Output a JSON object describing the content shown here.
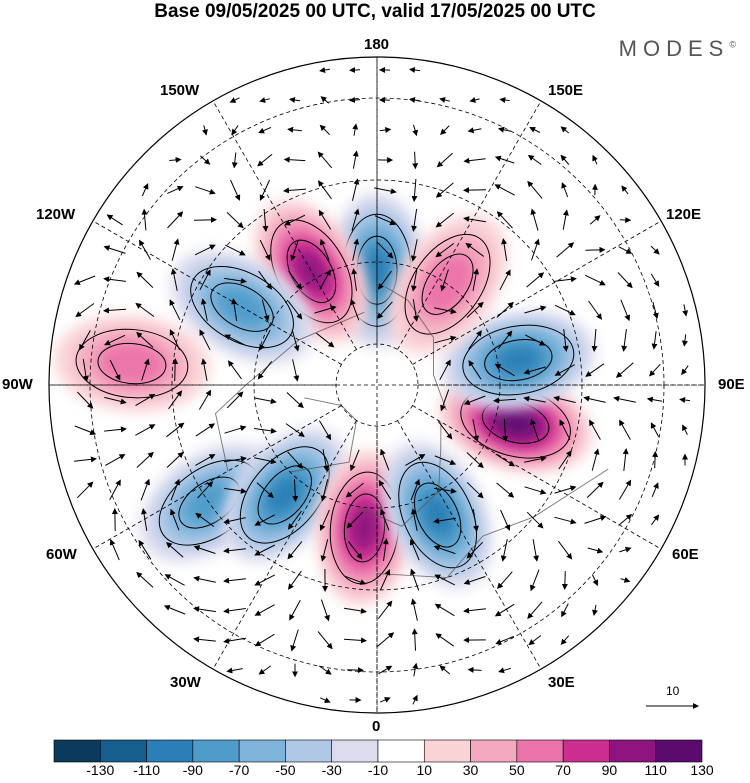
{
  "title": "Base 09/05/2025 00 UTC, valid 17/05/2025 00 UTC",
  "brand": {
    "name": "MODES",
    "mark": "©"
  },
  "longitude_labels": {
    "lon_180": "180",
    "lon_150E": "150E",
    "lon_120E": "120E",
    "lon_90E": "90E",
    "lon_60E": "60E",
    "lon_30E": "30E",
    "lon_0": "0",
    "lon_30W": "30W",
    "lon_60W": "60W",
    "lon_90W": "90W",
    "lon_120W": "120W",
    "lon_150W": "150W"
  },
  "reference_vector": {
    "label": "10"
  },
  "colorbar": {
    "ticks": [
      "-130",
      "-110",
      "-90",
      "-70",
      "-50",
      "-30",
      "-10",
      "10",
      "30",
      "50",
      "70",
      "90",
      "110",
      "130"
    ],
    "colors": [
      "#0b3a5c",
      "#155e8e",
      "#2b7fb6",
      "#4f9ccb",
      "#7fb3da",
      "#aec8e6",
      "#dcdcee",
      "#ffffff",
      "#f9d3d6",
      "#f4a9c0",
      "#ec74aa",
      "#cc2e8f",
      "#8e1480",
      "#5b0b6e"
    ]
  },
  "map_features": {
    "projection": "north polar stereographic",
    "field": "shaded anomaly with vector field",
    "anomaly_centers": [
      {
        "lon": 180,
        "lat": 62,
        "sign": "negative",
        "level": -110
      },
      {
        "lon": -150,
        "lat": 58,
        "sign": "positive",
        "level": 110
      },
      {
        "lon": -120,
        "lat": 52,
        "sign": "negative",
        "level": -90
      },
      {
        "lon": -95,
        "lat": 30,
        "sign": "positive",
        "level": 70
      },
      {
        "lon": -55,
        "lat": 40,
        "sign": "negative",
        "level": -90
      },
      {
        "lon": -40,
        "lat": 55,
        "sign": "negative",
        "level": -110
      },
      {
        "lon": -5,
        "lat": 55,
        "sign": "positive",
        "level": 110
      },
      {
        "lon": 25,
        "lat": 55,
        "sign": "negative",
        "level": -110
      },
      {
        "lon": 75,
        "lat": 55,
        "sign": "positive",
        "level": 130
      },
      {
        "lon": 100,
        "lat": 55,
        "sign": "negative",
        "level": -110
      },
      {
        "lon": 145,
        "lat": 60,
        "sign": "positive",
        "level": 70
      }
    ]
  }
}
